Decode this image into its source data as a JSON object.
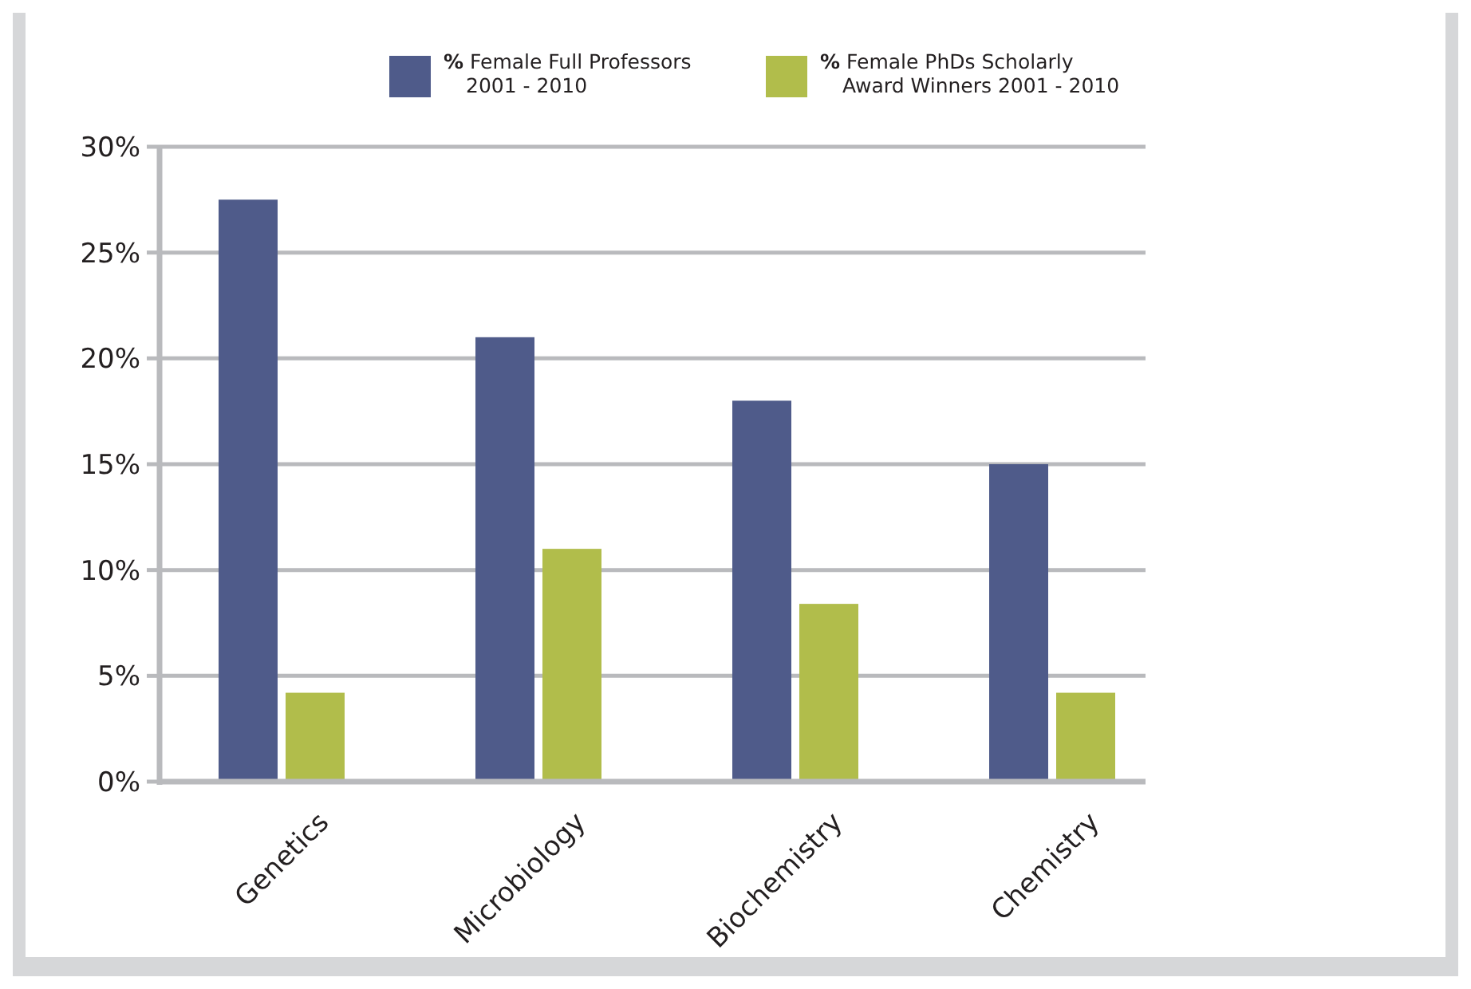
{
  "chart_data": {
    "type": "bar",
    "categories": [
      "Genetics",
      "Microbiology",
      "Biochemistry",
      "Chemistry"
    ],
    "series": [
      {
        "name": "% Female Full Professors 2001 - 2010",
        "color": "#4f5b8a",
        "values": [
          27.5,
          21,
          18,
          15
        ]
      },
      {
        "name": "% Female PhDs Scholarly Award Winners 2001 - 2010",
        "color": "#b1bd4b",
        "values": [
          4.2,
          11,
          8.4,
          4.2
        ]
      }
    ],
    "ylim": [
      0,
      30
    ],
    "yticks": [
      {
        "value": 0,
        "label": "0%"
      },
      {
        "value": 5,
        "label": "5%"
      },
      {
        "value": 10,
        "label": "10%"
      },
      {
        "value": 15,
        "label": "15%"
      },
      {
        "value": 20,
        "label": "20%"
      },
      {
        "value": 25,
        "label": "25%"
      },
      {
        "value": 30,
        "label": "30%"
      }
    ],
    "grid": "y",
    "legend": "top"
  }
}
